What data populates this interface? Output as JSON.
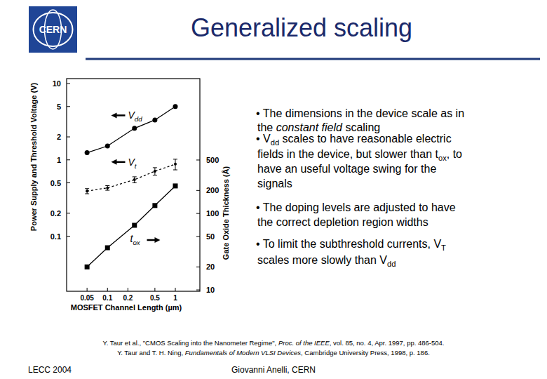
{
  "slide": {
    "logo": "CERN",
    "title": "Generalized scaling",
    "bullets": [
      [
        {
          "text": "• The dimensions in the device scale as in"
        }
      ],
      [
        {
          "text": "the "
        },
        {
          "text": "constant field",
          "style": "i"
        },
        {
          "text": " scaling"
        }
      ],
      [
        {
          "text": "• V"
        },
        {
          "text": "dd",
          "style": "sub"
        },
        {
          "text": " scales to have reasonable electric"
        }
      ],
      [
        {
          "text": "fields in the device, but slower than t"
        },
        {
          "text": "ox",
          "style": "sub"
        },
        {
          "text": ", to"
        }
      ],
      [
        {
          "text": "have an useful voltage swing for the"
        }
      ],
      [
        {
          "text": "signals"
        }
      ],
      [
        {
          "text": "• The doping levels are adjusted to have"
        }
      ],
      [
        {
          "text": "the correct depletion region widths"
        }
      ],
      [
        {
          "text": "• To limit the subthreshold currents, V"
        },
        {
          "text": "T",
          "style": "sub"
        }
      ],
      [
        {
          "text": "scales more slowly than V"
        },
        {
          "text": "dd",
          "style": "sub"
        }
      ]
    ],
    "citations": [
      [
        {
          "text": "Y. Taur et al., \"CMOS Scaling into the Nanometer Regime\", "
        },
        {
          "text": "Proc. of the IEEE",
          "style": "i"
        },
        {
          "text": ", vol. 85, no. 4, Apr. 1997, pp. 486-504."
        }
      ],
      [
        {
          "text": "Y. Taur and T. H. Ning, "
        },
        {
          "text": "Fundamentals of Modern VLSI Devices",
          "style": "i"
        },
        {
          "text": ", Cambridge University Press, 1998, p. 186."
        }
      ]
    ],
    "footer_left": "LECC 2004",
    "footer_center": "Giovanni Anelli, CERN"
  },
  "chart_data": {
    "type": "line",
    "x_label": "MOSFET Channel Length (µm)",
    "y_label": "Power Supply and Threshold Voltage (V)",
    "y2_label": "Gate Oxide Thickness (Å)",
    "log": true,
    "grid": false,
    "x": [
      0.05,
      0.1,
      0.25,
      0.5,
      1
    ],
    "xlim": [
      0.025,
      2.3
    ],
    "xticks": [
      0.05,
      0.1,
      0.2,
      0.5,
      1
    ],
    "ylim": [
      0.019,
      11.6
    ],
    "yticks": [
      0.1,
      0.2,
      0.5,
      1,
      2,
      5,
      10
    ],
    "y2lim": [
      9.6,
      5800
    ],
    "y2ticks": [
      10,
      20,
      50,
      100,
      200,
      500
    ],
    "series": [
      {
        "name": "Vdd",
        "color": "#000000",
        "marker": "circle",
        "line_style": "solid",
        "values": [
          1.24,
          1.52,
          2.59,
          3.33,
          5.0
        ]
      },
      {
        "name": "Vt",
        "color": "#000000",
        "marker": "circle",
        "line_style": "dashed",
        "values": [
          0.39,
          0.43,
          0.55,
          0.71,
          0.88
        ],
        "errors": [
          0.03,
          0.03,
          0.05,
          0.08,
          0.14
        ]
      },
      {
        "name": "tox",
        "color": "#000000",
        "marker": "square",
        "line_style": "solid",
        "axis": "y2",
        "values": [
          20,
          35.6,
          70,
          127,
          229
        ]
      }
    ]
  }
}
